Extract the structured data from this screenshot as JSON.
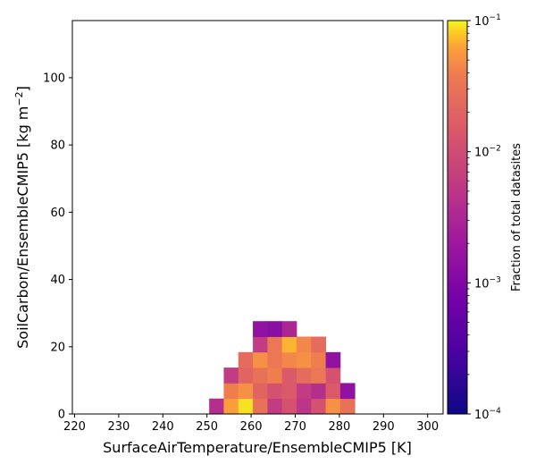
{
  "chart_data": {
    "type": "heatmap",
    "xlabel": "SurfaceAirTemperature/EnsembleCMIP5 [K]",
    "ylabel_base": "SoilCarbon/EnsembleCMIP5 [kg m",
    "ylabel_sup": "−2",
    "ylabel_close": "]",
    "xlim": [
      219.5,
      303.5
    ],
    "ylim": [
      0,
      117
    ],
    "xticks": [
      220,
      230,
      240,
      250,
      260,
      270,
      280,
      290,
      300
    ],
    "yticks": [
      0,
      20,
      40,
      60,
      80,
      100
    ],
    "grid": false,
    "colorbar": {
      "label": "Fraction of total datasites",
      "scale": "log",
      "range": [
        0.0001,
        0.1
      ],
      "colormap": "plasma",
      "ticks": [
        {
          "value": 0.1,
          "base": "10",
          "exp": "−1"
        },
        {
          "value": 0.01,
          "base": "10",
          "exp": "−2"
        },
        {
          "value": 0.001,
          "base": "10",
          "exp": "−3"
        },
        {
          "value": 0.0001,
          "base": "10",
          "exp": "−4"
        }
      ]
    },
    "bin_width_x": 3.3,
    "bin_height_y": 4.6,
    "cells": [
      {
        "x": 250.5,
        "y": 0,
        "v": 0.004
      },
      {
        "x": 253.8,
        "y": 0,
        "v": 0.06
      },
      {
        "x": 257.1,
        "y": 0,
        "v": 0.09
      },
      {
        "x": 260.4,
        "y": 0,
        "v": 0.03
      },
      {
        "x": 263.7,
        "y": 0,
        "v": 0.006
      },
      {
        "x": 267.0,
        "y": 0,
        "v": 0.012
      },
      {
        "x": 270.3,
        "y": 0,
        "v": 0.005
      },
      {
        "x": 273.6,
        "y": 0,
        "v": 0.012
      },
      {
        "x": 276.9,
        "y": 0,
        "v": 0.05
      },
      {
        "x": 280.2,
        "y": 0,
        "v": 0.03
      },
      {
        "x": 253.8,
        "y": 4.6,
        "v": 0.04
      },
      {
        "x": 257.1,
        "y": 4.6,
        "v": 0.05
      },
      {
        "x": 260.4,
        "y": 4.6,
        "v": 0.02
      },
      {
        "x": 263.7,
        "y": 4.6,
        "v": 0.012
      },
      {
        "x": 267.0,
        "y": 4.6,
        "v": 0.015
      },
      {
        "x": 270.3,
        "y": 4.6,
        "v": 0.006
      },
      {
        "x": 273.6,
        "y": 4.6,
        "v": 0.004
      },
      {
        "x": 276.9,
        "y": 4.6,
        "v": 0.015
      },
      {
        "x": 280.2,
        "y": 4.6,
        "v": 0.0015
      },
      {
        "x": 253.8,
        "y": 9.2,
        "v": 0.006
      },
      {
        "x": 257.1,
        "y": 9.2,
        "v": 0.02
      },
      {
        "x": 260.4,
        "y": 9.2,
        "v": 0.03
      },
      {
        "x": 263.7,
        "y": 9.2,
        "v": 0.04
      },
      {
        "x": 267.0,
        "y": 9.2,
        "v": 0.015
      },
      {
        "x": 270.3,
        "y": 9.2,
        "v": 0.025
      },
      {
        "x": 273.6,
        "y": 9.2,
        "v": 0.035
      },
      {
        "x": 276.9,
        "y": 9.2,
        "v": 0.012
      },
      {
        "x": 257.1,
        "y": 13.8,
        "v": 0.025
      },
      {
        "x": 260.4,
        "y": 13.8,
        "v": 0.05
      },
      {
        "x": 263.7,
        "y": 13.8,
        "v": 0.035
      },
      {
        "x": 267.0,
        "y": 13.8,
        "v": 0.045
      },
      {
        "x": 270.3,
        "y": 13.8,
        "v": 0.05
      },
      {
        "x": 273.6,
        "y": 13.8,
        "v": 0.04
      },
      {
        "x": 276.9,
        "y": 13.8,
        "v": 0.0015
      },
      {
        "x": 260.4,
        "y": 18.4,
        "v": 0.006
      },
      {
        "x": 263.7,
        "y": 18.4,
        "v": 0.035
      },
      {
        "x": 267.0,
        "y": 18.4,
        "v": 0.07
      },
      {
        "x": 270.3,
        "y": 18.4,
        "v": 0.045
      },
      {
        "x": 273.6,
        "y": 18.4,
        "v": 0.025
      },
      {
        "x": 260.4,
        "y": 23.0,
        "v": 0.0015
      },
      {
        "x": 263.7,
        "y": 23.0,
        "v": 0.0013
      },
      {
        "x": 267.0,
        "y": 23.0,
        "v": 0.003
      }
    ]
  }
}
